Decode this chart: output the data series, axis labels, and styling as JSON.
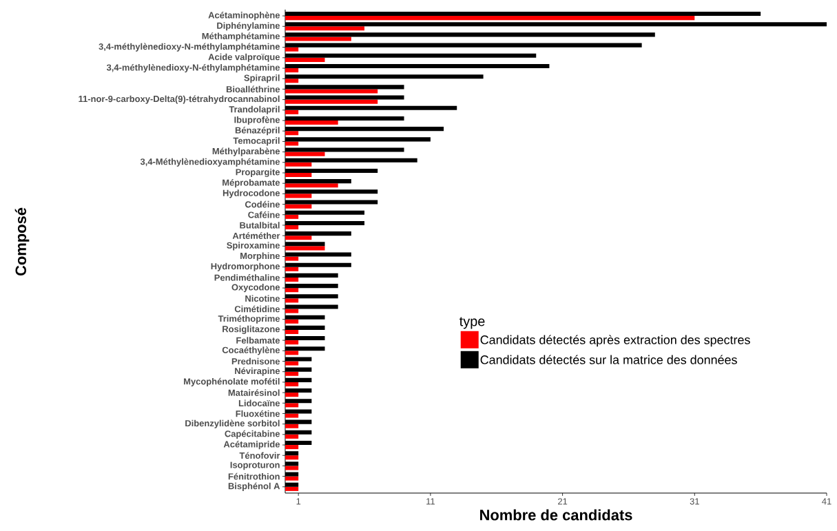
{
  "chart_data": {
    "type": "bar",
    "orientation": "horizontal",
    "xlabel": "Nombre de candidats",
    "ylabel": "Composé",
    "legend_title": "type",
    "legend": "bottom right",
    "xlim": [
      0,
      41
    ],
    "xticks": [
      1,
      11,
      21,
      31,
      41
    ],
    "categories": [
      "Acétaminophène",
      "Diphénylamine",
      "Méthamphétamine",
      "3,4-méthylènedioxy-N-méthylamphétamine",
      "Acide valproïque",
      "3,4-méthylènedioxy-N-éthylamphétamine",
      "Spirapril",
      "Bioalléthrine",
      "11-nor-9-carboxy-Delta(9)-tétrahydrocannabinol",
      "Trandolapril",
      "Ibuprofène",
      "Bénazépril",
      "Temocapril",
      "Méthylparabène",
      "3,4-Méthylènedioxyamphétamine",
      "Propargite",
      "Méprobamate",
      "Hydrocodone",
      "Codéine",
      "Caféine",
      "Butalbital",
      "Artéméther",
      "Spiroxamine",
      "Morphine",
      "Hydromorphone",
      "Pendiméthaline",
      "Oxycodone",
      "Nicotine",
      "Cimétidine",
      "Triméthoprime",
      "Rosiglitazone",
      "Felbamate",
      "Cocaéthylène",
      "Prednisone",
      "Névirapine",
      "Mycophénolate mofétil",
      "Matairésinol",
      "Lidocaïne",
      "Fluoxétine",
      "Dibenzylidène sorbitol",
      "Capécitabine",
      "Acétamipride",
      "Ténofovir",
      "Isoproturon",
      "Fénitrothion",
      "Bisphénol A"
    ],
    "series": [
      {
        "name": "Candidats détectés après extraction des spectres",
        "color": "#ff0000",
        "values": [
          31,
          6,
          5,
          1,
          3,
          1,
          1,
          7,
          7,
          1,
          4,
          1,
          1,
          3,
          2,
          2,
          4,
          2,
          2,
          1,
          1,
          2,
          3,
          1,
          1,
          1,
          1,
          1,
          1,
          1,
          1,
          1,
          1,
          1,
          1,
          1,
          1,
          1,
          1,
          1,
          1,
          1,
          1,
          1,
          1,
          1
        ]
      },
      {
        "name": "Candidats détectés sur la matrice des données",
        "color": "#000000",
        "values": [
          36,
          41,
          28,
          27,
          19,
          20,
          15,
          9,
          9,
          13,
          9,
          12,
          11,
          9,
          10,
          7,
          5,
          7,
          7,
          6,
          6,
          5,
          3,
          5,
          5,
          4,
          4,
          4,
          4,
          3,
          3,
          3,
          3,
          2,
          2,
          2,
          2,
          2,
          2,
          2,
          2,
          2,
          1,
          1,
          1,
          1
        ]
      }
    ]
  }
}
